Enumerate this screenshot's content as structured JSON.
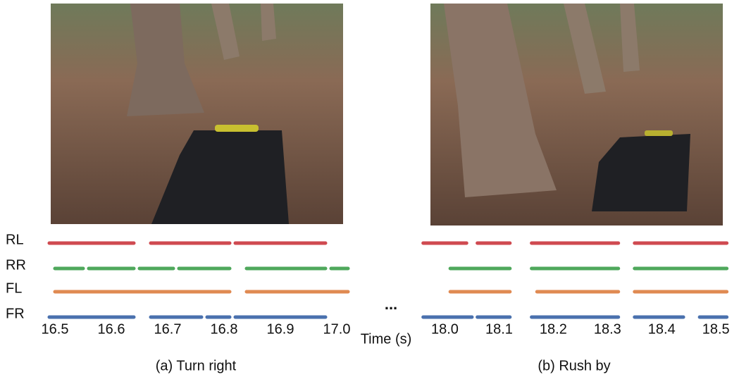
{
  "chart_data": [
    {
      "type": "timeline",
      "caption": "(a) Turn right",
      "xlim": [
        16.48,
        17.02
      ],
      "xticks": [
        16.5,
        16.6,
        16.7,
        16.8,
        16.9,
        {
          "value": 17.0,
          "label": "17.0"
        }
      ],
      "series": [
        {
          "name": "RL",
          "color": "#cf4a50",
          "segments": [
            [
              16.49,
              16.64
            ],
            [
              16.67,
              16.81
            ],
            [
              16.82,
              16.98
            ]
          ]
        },
        {
          "name": "RR",
          "color": "#4fa85c",
          "segments": [
            [
              16.5,
              16.55
            ],
            [
              16.56,
              16.64
            ],
            [
              16.65,
              16.71
            ],
            [
              16.72,
              16.81
            ],
            [
              16.84,
              16.98
            ],
            [
              16.99,
              17.02
            ]
          ]
        },
        {
          "name": "FL",
          "color": "#e08a52",
          "segments": [
            [
              16.5,
              16.81
            ],
            [
              16.84,
              17.02
            ]
          ]
        },
        {
          "name": "FR",
          "color": "#4a71ae",
          "segments": [
            [
              16.49,
              16.64
            ],
            [
              16.67,
              16.76
            ],
            [
              16.77,
              16.81
            ],
            [
              16.82,
              16.98
            ]
          ]
        }
      ]
    },
    {
      "type": "timeline",
      "caption": "(b) Rush by",
      "xlim": [
        17.95,
        18.54
      ],
      "xticks": [
        {
          "value": 18.0,
          "label": "18.0"
        },
        18.1,
        18.2,
        18.3,
        18.4,
        18.5
      ],
      "series": [
        {
          "color": "#cf4a50",
          "segments": [
            [
              17.96,
              18.04
            ],
            [
              18.06,
              18.12
            ],
            [
              18.16,
              18.32
            ],
            [
              18.35,
              18.45
            ],
            [
              18.45,
              18.52
            ]
          ]
        },
        {
          "color": "#4fa85c",
          "segments": [
            [
              18.01,
              18.12
            ],
            [
              18.16,
              18.32
            ],
            [
              18.35,
              18.52
            ]
          ]
        },
        {
          "color": "#e08a52",
          "segments": [
            [
              18.01,
              18.12
            ],
            [
              18.17,
              18.32
            ],
            [
              18.35,
              18.52
            ]
          ]
        },
        {
          "color": "#4a71ae",
          "segments": [
            [
              17.96,
              18.05
            ],
            [
              18.06,
              18.12
            ],
            [
              18.16,
              18.32
            ],
            [
              18.35,
              18.44
            ],
            [
              18.47,
              18.52
            ]
          ]
        }
      ]
    }
  ],
  "xlabel": "Time (s)",
  "separator": "..."
}
